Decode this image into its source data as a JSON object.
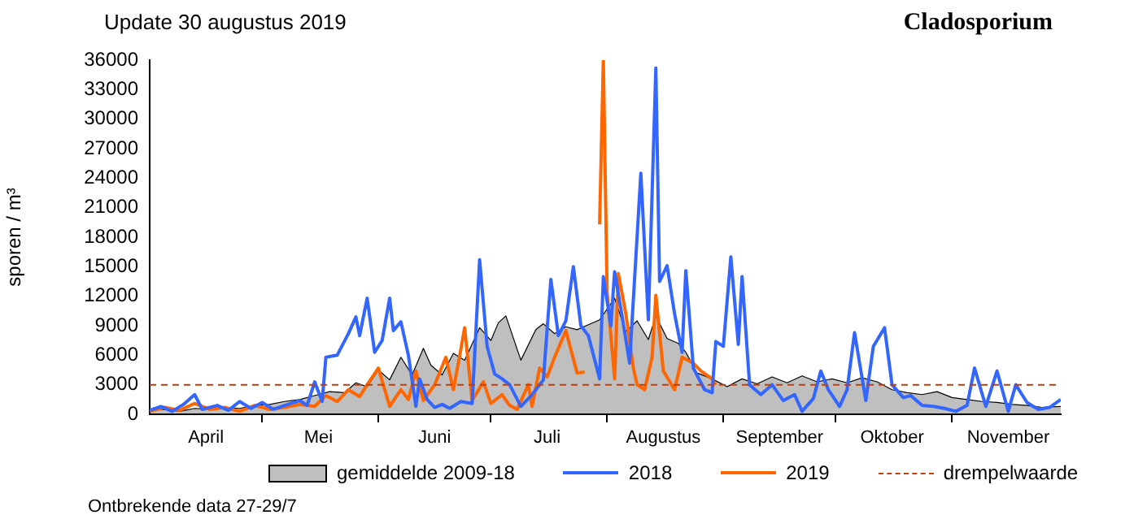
{
  "chart_data": {
    "type": "line",
    "title": "Cladosporium",
    "subtitle": "Update 30 augustus 2019",
    "ylabel": "sporen / m³",
    "annotations": [
      "Ontbrekende data 27-29/7"
    ],
    "xlim": [
      "--04-01",
      "--11-30"
    ],
    "xticks": [
      {
        "value": "--04-16",
        "label": "April"
      },
      {
        "value": "--05-01",
        "label": null
      },
      {
        "value": "--05-16",
        "label": "Mei"
      },
      {
        "value": "--06-01",
        "label": null
      },
      {
        "value": "--06-16",
        "label": "Juni"
      },
      {
        "value": "--07-01",
        "label": null
      },
      {
        "value": "--07-16",
        "label": "Juli"
      },
      {
        "value": "--08-01",
        "label": null
      },
      {
        "value": "--08-16",
        "label": "Augustus"
      },
      {
        "value": "--09-01",
        "label": null
      },
      {
        "value": "--09-16",
        "label": "September"
      },
      {
        "value": "--10-01",
        "label": null
      },
      {
        "value": "--10-16",
        "label": "Oktober"
      },
      {
        "value": "--11-01",
        "label": null
      },
      {
        "value": "--11-16",
        "label": "November"
      }
    ],
    "ylim": [
      0,
      36000
    ],
    "yticks": [
      0,
      3000,
      6000,
      9000,
      12000,
      15000,
      18000,
      21000,
      24000,
      27000,
      30000,
      33000,
      36000
    ],
    "legend": "bottom",
    "marker": "none",
    "ref_lines": [
      {
        "axis": "y",
        "value": 3000,
        "label": "drempelwaarde",
        "color": "#c0400c",
        "line_style": "dashed"
      }
    ],
    "series": [
      {
        "name": "gemiddelde 2009-18",
        "type": "area",
        "color": "#000000",
        "x": [
          "--04-01",
          "--04-05",
          "--04-09",
          "--04-13",
          "--04-17",
          "--04-21",
          "--04-25",
          "--04-29",
          "--05-03",
          "--05-07",
          "--05-11",
          "--05-15",
          "--05-19",
          "--05-23",
          "--05-26",
          "--05-29",
          "--06-01",
          "--06-04",
          "--06-07",
          "--06-10",
          "--06-13",
          "--06-15",
          "--06-18",
          "--06-21",
          "--06-24",
          "--06-28",
          "--07-01",
          "--07-03",
          "--07-05",
          "--07-09",
          "--07-13",
          "--07-15",
          "--07-18",
          "--07-21",
          "--07-24",
          "--07-27",
          "--07-30",
          "--08-03",
          "--08-06",
          "--08-09",
          "--08-12",
          "--08-14",
          "--08-17",
          "--08-20",
          "--08-22",
          "--08-25",
          "--08-29",
          "--09-02",
          "--09-06",
          "--09-10",
          "--09-14",
          "--09-18",
          "--09-22",
          "--09-26",
          "--09-30",
          "--10-04",
          "--10-08",
          "--10-12",
          "--10-16",
          "--10-20",
          "--10-24",
          "--10-28",
          "--11-01",
          "--11-05",
          "--11-09",
          "--11-13",
          "--11-17",
          "--11-21",
          "--11-25",
          "--11-30"
        ],
        "values": [
          400,
          500,
          300,
          600,
          500,
          700,
          600,
          900,
          1000,
          1300,
          1500,
          1900,
          2300,
          2200,
          3200,
          2800,
          4500,
          3500,
          5800,
          4000,
          6700,
          5000,
          4000,
          6200,
          5500,
          8800,
          7500,
          9300,
          10000,
          5500,
          8600,
          9200,
          8200,
          8900,
          8600,
          9100,
          9600,
          11800,
          8400,
          9500,
          7600,
          10000,
          7700,
          7200,
          6300,
          4200,
          3600,
          2800,
          3600,
          3100,
          3800,
          3200,
          3900,
          3300,
          3600,
          3200,
          3700,
          3300,
          2500,
          2200,
          2000,
          2300,
          1700,
          1500,
          1300,
          1200,
          1000,
          900,
          700,
          800
        ]
      },
      {
        "name": "2018",
        "type": "line",
        "color": "#3366ff",
        "x": [
          "--04-01",
          "--04-04",
          "--04-07",
          "--04-10",
          "--04-13",
          "--04-15",
          "--04-19",
          "--04-22",
          "--04-25",
          "--04-28",
          "--05-01",
          "--05-04",
          "--05-07",
          "--05-11",
          "--05-13",
          "--05-15",
          "--05-17",
          "--05-18",
          "--05-21",
          "--05-24",
          "--05-26",
          "--05-27",
          "--05-29",
          "--05-31",
          "--06-02",
          "--06-04",
          "--06-05",
          "--06-07",
          "--06-09",
          "--06-11",
          "--06-12",
          "--06-14",
          "--06-16",
          "--06-18",
          "--06-20",
          "--06-23",
          "--06-26",
          "--06-28",
          "--06-30",
          "--07-02",
          "--07-04",
          "--07-06",
          "--07-09",
          "--07-12",
          "--07-15",
          "--07-17",
          "--07-19",
          "--07-21",
          "--07-23",
          "--07-25",
          "--07-27",
          "--07-30",
          "--07-31",
          "--08-02",
          "--08-03",
          "--08-05",
          "--08-07",
          "--08-10",
          "--08-12",
          "--08-14",
          "--08-15",
          "--08-17",
          "--08-19",
          "--08-21",
          "--08-22",
          "--08-24",
          "--08-27",
          "--08-29",
          "--08-30",
          "--09-01",
          "--09-03",
          "--09-05",
          "--09-06",
          "--09-08",
          "--09-11",
          "--09-14",
          "--09-17",
          "--09-20",
          "--09-22",
          "--09-25",
          "--09-27",
          "--09-29",
          "--10-02",
          "--10-04",
          "--10-06",
          "--10-09",
          "--10-11",
          "--10-14",
          "--10-16",
          "--10-19",
          "--10-21",
          "--10-24",
          "--10-27",
          "--10-30",
          "--11-02",
          "--11-05",
          "--11-07",
          "--11-10",
          "--11-13",
          "--11-16",
          "--11-18",
          "--11-21",
          "--11-24",
          "--11-27",
          "--11-30"
        ],
        "values": [
          400,
          800,
          300,
          1000,
          2000,
          500,
          900,
          400,
          1300,
          600,
          1200,
          500,
          900,
          1400,
          900,
          3300,
          1300,
          5800,
          6000,
          8200,
          9900,
          8000,
          11800,
          6300,
          7500,
          11800,
          8500,
          9400,
          6000,
          800,
          3600,
          1500,
          700,
          1000,
          600,
          1300,
          1100,
          15700,
          6900,
          4100,
          3600,
          3000,
          800,
          2000,
          3500,
          13700,
          8000,
          9500,
          15000,
          9000,
          8000,
          3600,
          14000,
          9000,
          14500,
          10000,
          5200,
          24500,
          9600,
          35200,
          13500,
          15100,
          10200,
          6300,
          14600,
          4700,
          2500,
          2200,
          7400,
          6900,
          16000,
          7100,
          14000,
          3000,
          2000,
          3000,
          1400,
          2000,
          300,
          1600,
          4400,
          2500,
          800,
          2500,
          8300,
          1400,
          6900,
          8800,
          3000,
          1700,
          1900,
          900,
          800,
          600,
          300,
          900,
          4700,
          800,
          4400,
          300,
          3000,
          1200,
          500,
          700,
          1500
        ]
      },
      {
        "name": "2019",
        "type": "line",
        "color": "#ff6600",
        "x": [
          "--04-01",
          "--04-05",
          "--04-09",
          "--04-13",
          "--04-17",
          "--04-21",
          "--04-25",
          "--04-29",
          "--05-03",
          "--05-07",
          "--05-11",
          "--05-15",
          "--05-18",
          "--05-21",
          "--05-24",
          "--05-27",
          "--05-29",
          "--06-01",
          "--06-04",
          "--06-07",
          "--06-09",
          "--06-11",
          "--06-13",
          "--06-16",
          "--06-19",
          "--06-21",
          "--06-23",
          "--06-24",
          "--06-26",
          "--06-29",
          "--07-01",
          "--07-04",
          "--07-06",
          "--07-08",
          "--07-11",
          "--07-12",
          "--07-14",
          "--07-16",
          "--07-18",
          "--07-21",
          "--07-24",
          "--07-26",
          "--07-28",
          "--07-30",
          "--07-31",
          "--08-01",
          "--08-03",
          "--08-04",
          "--08-06",
          "--08-08",
          "--08-09",
          "--08-11",
          "--08-13",
          "--08-14",
          "--08-16",
          "--08-19",
          "--08-21",
          "--08-24",
          "--08-26",
          "--08-29",
          "--08-30"
        ],
        "values": [
          300,
          700,
          400,
          1100,
          500,
          700,
          300,
          900,
          500,
          700,
          1000,
          800,
          1900,
          1300,
          2500,
          1800,
          3000,
          4700,
          800,
          2500,
          1500,
          4400,
          1400,
          3000,
          5800,
          2500,
          6600,
          8800,
          1400,
          3300,
          1100,
          2000,
          900,
          500,
          3000,
          800,
          4700,
          3800,
          5800,
          8500,
          4200,
          4300,
          null,
          19300,
          36000,
          12400,
          3600,
          14300,
          10200,
          4700,
          3000,
          2500,
          5800,
          12100,
          4400,
          2500,
          5800,
          5200,
          4400,
          3600,
          3000
        ]
      }
    ]
  }
}
